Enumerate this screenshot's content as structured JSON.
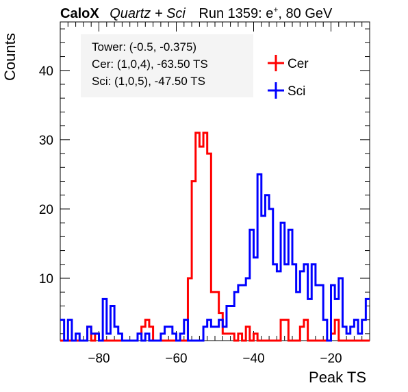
{
  "title": {
    "experiment": "CaloX",
    "config": "Quartz + Sci",
    "run_prefix": "Run 1359: e",
    "run_sup": "+",
    "run_suffix": ", 80 GeV"
  },
  "info": {
    "line1": "Tower: (-0.5, -0.375)",
    "line2": "Cer: (1,0,4), -63.50 TS",
    "line3": "Sci: (1,0,5), -47.50 TS"
  },
  "chart_data": {
    "type": "histogram",
    "xlabel": "Peak TS",
    "ylabel": "Counts",
    "xlim": [
      -90,
      -10
    ],
    "ylim": [
      1,
      47
    ],
    "bin_edges_start": -90,
    "bin_width": 1,
    "xticks": [
      -80,
      -60,
      -40,
      -20
    ],
    "xtick_labels": [
      "−80",
      "−60",
      "−40",
      "−20"
    ],
    "yticks": [
      10,
      20,
      30,
      40
    ],
    "ytick_labels": [
      "10",
      "20",
      "30",
      "40"
    ],
    "legend_position": "top-right",
    "series": [
      {
        "name": "Cer",
        "color": "#ff0000",
        "values": [
          0,
          0,
          0,
          1,
          0,
          0,
          0,
          3,
          1,
          2,
          0,
          0,
          0,
          0,
          0,
          0,
          0,
          0,
          0,
          1,
          2,
          3,
          4,
          3,
          0,
          0,
          0,
          1,
          1,
          0,
          1,
          0,
          0,
          10,
          24,
          31,
          29,
          31,
          28,
          8,
          8,
          5,
          2,
          2,
          2,
          1,
          2,
          1,
          3,
          1,
          2,
          0,
          0,
          0,
          1,
          1,
          1,
          4,
          4,
          1,
          1,
          1,
          3,
          4,
          0,
          0,
          0,
          0,
          0,
          0,
          2,
          4,
          0,
          0,
          0,
          0,
          0,
          0,
          0,
          1
        ]
      },
      {
        "name": "Sci",
        "color": "#0000ff",
        "values": [
          4,
          1,
          4,
          0,
          2,
          1,
          1,
          3,
          2,
          2,
          1,
          7,
          2,
          6,
          3,
          2,
          1,
          0,
          0,
          1,
          2,
          1,
          2,
          0,
          0,
          0,
          2,
          3,
          3,
          2,
          1,
          2,
          4,
          1,
          0,
          1,
          1,
          3,
          4,
          3,
          3,
          4,
          3,
          6,
          6,
          8,
          9,
          9,
          10,
          17,
          13,
          25,
          19,
          22,
          20,
          12,
          11,
          18,
          12,
          17,
          12,
          8,
          11,
          12,
          7,
          12,
          9,
          9,
          4,
          0,
          9,
          7,
          10,
          3,
          2,
          3,
          4,
          2,
          4,
          7
        ]
      }
    ]
  }
}
